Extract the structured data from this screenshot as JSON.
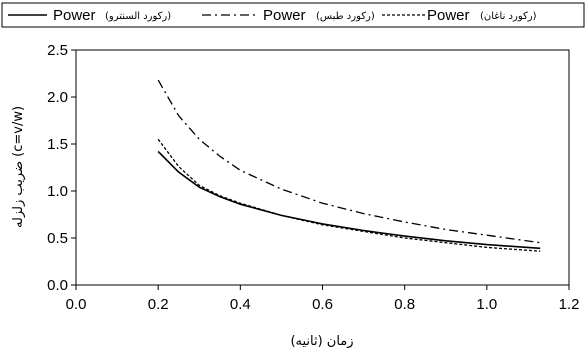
{
  "chart_data": {
    "type": "line",
    "xlabel": "زمان (ثانیه)",
    "ylabel": "ضریب زلزله (c=v/w)",
    "xlim": [
      0,
      1.2
    ],
    "ylim": [
      0,
      2.5
    ],
    "x_ticks": [
      "0.0",
      "0.2",
      "0.4",
      "0.6",
      "0.8",
      "1.0",
      "1.2"
    ],
    "y_ticks": [
      "0.0",
      "0.5",
      "1.0",
      "1.5",
      "2.0",
      "2.5"
    ],
    "grid": false,
    "legend_position": "top",
    "series": [
      {
        "name": "Power",
        "name_note": "(رکورد السنترو)",
        "style": "solid",
        "color": "#000000",
        "x": [
          0.2,
          0.25,
          0.3,
          0.35,
          0.4,
          0.5,
          0.6,
          0.7,
          0.8,
          0.9,
          1.0,
          1.13
        ],
        "y": [
          1.42,
          1.2,
          1.04,
          0.94,
          0.86,
          0.74,
          0.65,
          0.58,
          0.52,
          0.47,
          0.43,
          0.39
        ]
      },
      {
        "name": "Power",
        "name_note": "(رکورد طبس)",
        "style": "dashdot",
        "color": "#000000",
        "x": [
          0.2,
          0.25,
          0.3,
          0.35,
          0.4,
          0.5,
          0.6,
          0.7,
          0.8,
          0.9,
          1.0,
          1.13
        ],
        "y": [
          2.18,
          1.8,
          1.55,
          1.37,
          1.22,
          1.02,
          0.87,
          0.76,
          0.67,
          0.59,
          0.53,
          0.45
        ]
      },
      {
        "name": "Power",
        "name_note": "(رکورد ناغان)",
        "style": "dashed",
        "color": "#000000",
        "x": [
          0.2,
          0.25,
          0.3,
          0.35,
          0.4,
          0.5,
          0.6,
          0.7,
          0.8,
          0.9,
          1.0,
          1.13
        ],
        "y": [
          1.55,
          1.26,
          1.06,
          0.95,
          0.87,
          0.74,
          0.64,
          0.57,
          0.5,
          0.45,
          0.4,
          0.36
        ]
      }
    ]
  }
}
